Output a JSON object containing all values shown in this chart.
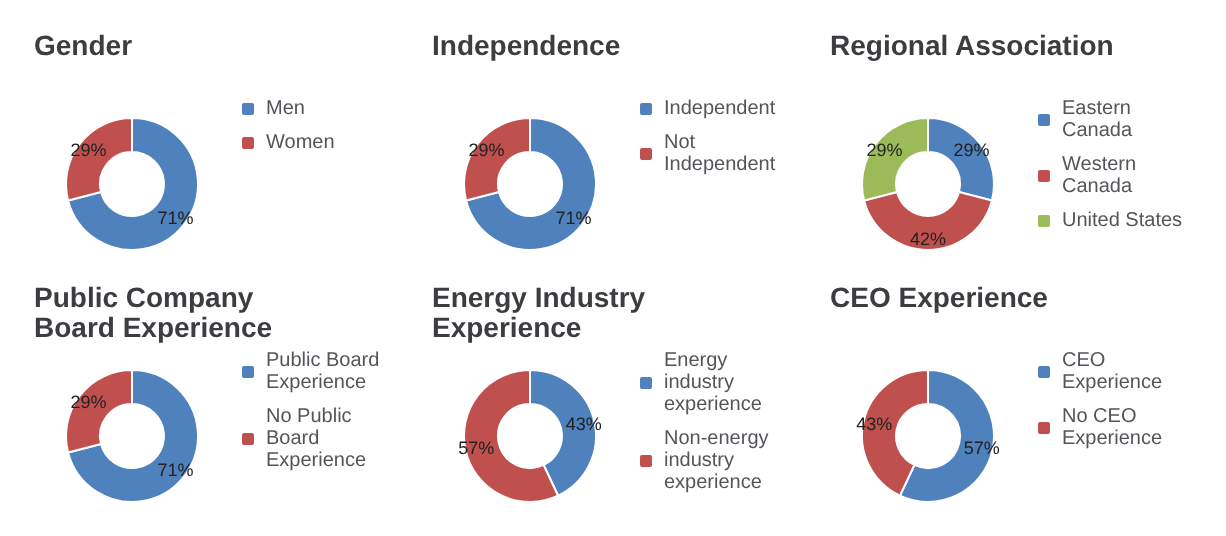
{
  "chart_data": [
    {
      "type": "donut",
      "title": "Gender",
      "categories": [
        "Men",
        "Women"
      ],
      "values": [
        71,
        29
      ],
      "value_labels": [
        "71%",
        "29%"
      ],
      "colors": [
        "#4f81bd",
        "#c0504d"
      ],
      "legend": "right"
    },
    {
      "type": "donut",
      "title": "Independence",
      "categories": [
        "Independent",
        "Not Independent"
      ],
      "values": [
        71,
        29
      ],
      "value_labels": [
        "71%",
        "29%"
      ],
      "colors": [
        "#4f81bd",
        "#c0504d"
      ],
      "legend": "right"
    },
    {
      "type": "donut",
      "title": "Regional Association",
      "categories": [
        "Eastern Canada",
        "Western Canada",
        "United States"
      ],
      "values": [
        29,
        42,
        29
      ],
      "value_labels": [
        "29%",
        "42%",
        "29%"
      ],
      "colors": [
        "#4f81bd",
        "#c0504d",
        "#9bbb59"
      ],
      "legend": "right"
    },
    {
      "type": "donut",
      "title": "Public Company Board Experience",
      "categories": [
        "Public Board Experience",
        "No Public Board Experience"
      ],
      "values": [
        71,
        29
      ],
      "value_labels": [
        "71%",
        "29%"
      ],
      "colors": [
        "#4f81bd",
        "#c0504d"
      ],
      "legend": "right"
    },
    {
      "type": "donut",
      "title": "Energy Industry Experience",
      "categories": [
        "Energy industry experience",
        "Non-energy industry experience"
      ],
      "values": [
        43,
        57
      ],
      "value_labels": [
        "43%",
        "57%"
      ],
      "colors": [
        "#4f81bd",
        "#c0504d"
      ],
      "legend": "right"
    },
    {
      "type": "donut",
      "title": "CEO Experience",
      "categories": [
        "CEO Experience",
        "No CEO Experience"
      ],
      "values": [
        57,
        43
      ],
      "value_labels": [
        "57%",
        "43%"
      ],
      "colors": [
        "#4f81bd",
        "#c0504d"
      ],
      "legend": "right"
    }
  ]
}
